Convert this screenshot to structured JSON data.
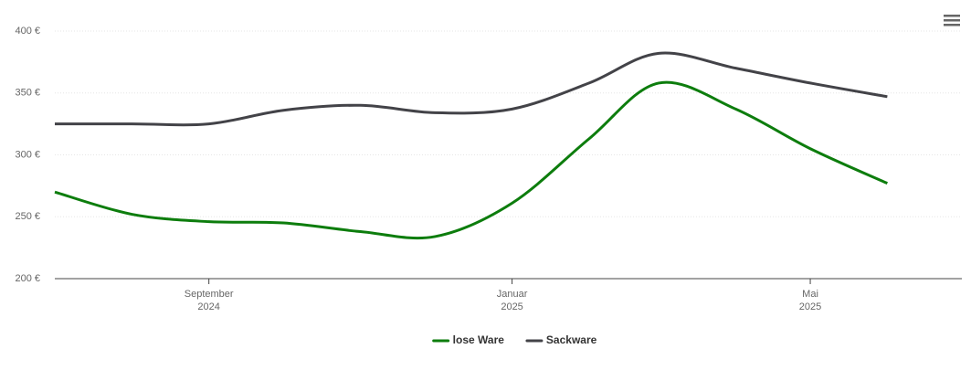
{
  "chart_data": {
    "type": "line",
    "x": [
      "2024-07",
      "2024-08",
      "2024-09",
      "2024-10",
      "2024-11",
      "2024-12",
      "2025-01",
      "2025-02",
      "2025-03",
      "2025-04",
      "2025-05",
      "2025-06"
    ],
    "series": [
      {
        "name": "lose Ware",
        "color": "#0d7d0d",
        "values": [
          270,
          252,
          246,
          245,
          238,
          234,
          261,
          313,
          358,
          337,
          305,
          277
        ]
      },
      {
        "name": "Sackware",
        "color": "#434348",
        "values": [
          325,
          325,
          325,
          336,
          340,
          334,
          337,
          358,
          382,
          370,
          358,
          347
        ]
      }
    ],
    "xlim": [
      "2024-07",
      "2025-07"
    ],
    "xticks": [
      {
        "value": "2024-09",
        "label": "September 2024"
      },
      {
        "value": "2025-01",
        "label": "Januar 2025"
      },
      {
        "value": "2025-05",
        "label": "Mai 2025"
      }
    ],
    "ylim": [
      200,
      400
    ],
    "yticks": [
      {
        "value": 200,
        "label": "200 €"
      },
      {
        "value": 250,
        "label": "250 €"
      },
      {
        "value": 300,
        "label": "300 €"
      },
      {
        "value": 350,
        "label": "350 €"
      },
      {
        "value": 400,
        "label": "400 €"
      }
    ],
    "grid": true,
    "legend": "bottom"
  }
}
